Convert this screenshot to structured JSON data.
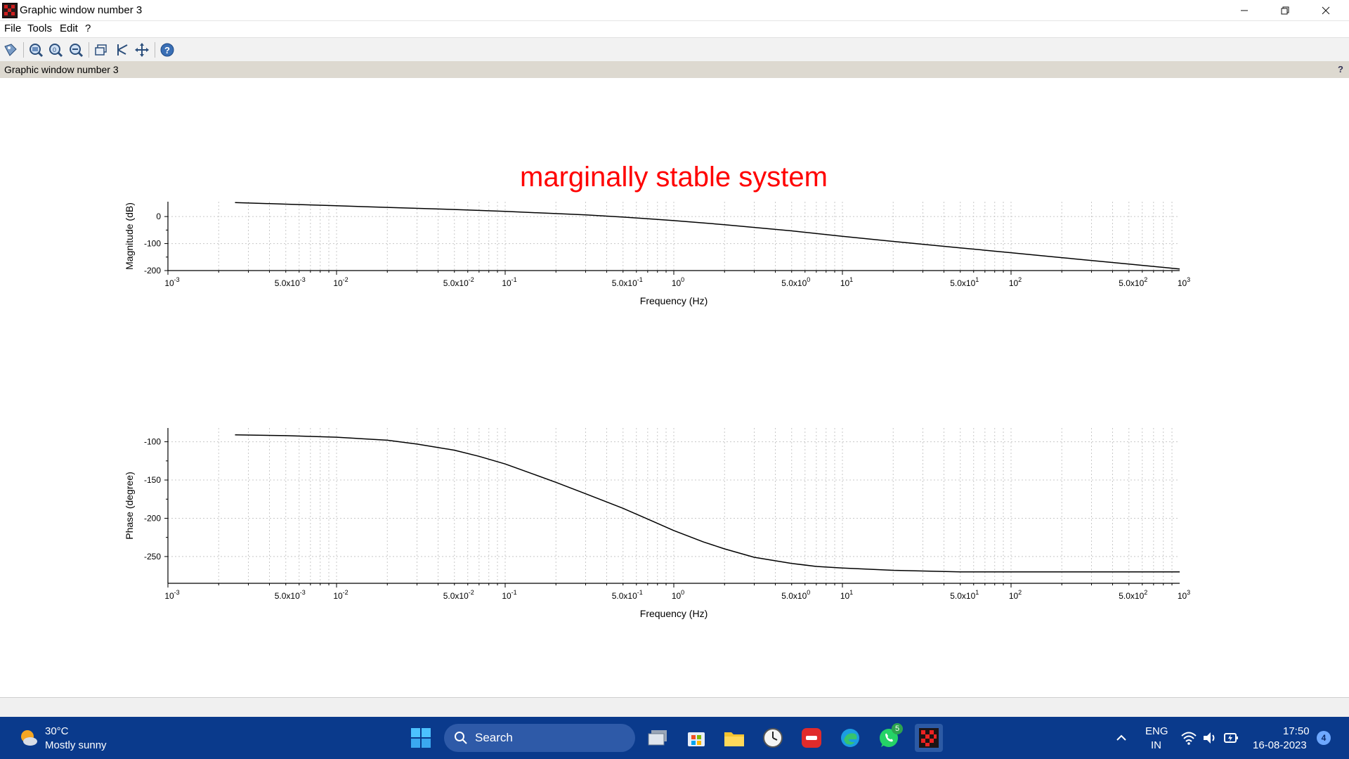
{
  "window": {
    "title": "Graphic window number 3",
    "minimize_icon": "minimize-icon",
    "restore_icon": "restore-icon",
    "close_icon": "close-icon"
  },
  "menu": [
    "File",
    "Tools",
    "Edit",
    "?"
  ],
  "toolbar": [
    "datatip-icon",
    "zoom-in-icon",
    "zoom-reset-icon",
    "zoom-out-icon",
    "rotate-3d-icon",
    "axes-icon",
    "pan-icon",
    "help-icon"
  ],
  "figure_label": "Graphic window number 3",
  "figure_help": "?",
  "chart_data": [
    {
      "type": "line",
      "title": "marginally stable system",
      "title_color": "#ff0000",
      "xlabel": "Frequency (Hz)",
      "ylabel": "Magnitude (dB)",
      "x_scale": "log",
      "xlim": [
        0.001,
        1000
      ],
      "ylim": [
        -200,
        55
      ],
      "y_ticks": [
        0,
        -100,
        -200
      ],
      "x_tick_labels": [
        {
          "mant": "10",
          "exp": "-3",
          "value": 0.001
        },
        {
          "mant": "5.0x10",
          "exp": "-3",
          "value": 0.005
        },
        {
          "mant": "10",
          "exp": "-2",
          "value": 0.01
        },
        {
          "mant": "5.0x10",
          "exp": "-2",
          "value": 0.05
        },
        {
          "mant": "10",
          "exp": "-1",
          "value": 0.1
        },
        {
          "mant": "5.0x10",
          "exp": "-1",
          "value": 0.5
        },
        {
          "mant": "10",
          "exp": "0",
          "value": 1
        },
        {
          "mant": "5.0x10",
          "exp": "0",
          "value": 5
        },
        {
          "mant": "10",
          "exp": "1",
          "value": 10
        },
        {
          "mant": "5.0x10",
          "exp": "1",
          "value": 50
        },
        {
          "mant": "10",
          "exp": "2",
          "value": 100
        },
        {
          "mant": "5.0x10",
          "exp": "2",
          "value": 500
        },
        {
          "mant": "10",
          "exp": "3",
          "value": 1000
        }
      ],
      "grid": true,
      "series": [
        {
          "color": "#000000",
          "x": [
            0.0025,
            0.005,
            0.01,
            0.02,
            0.05,
            0.1,
            0.2,
            0.3,
            0.5,
            0.7,
            1,
            2,
            5,
            10,
            20,
            50,
            100,
            200,
            500,
            1000
          ],
          "y": [
            52,
            46,
            40,
            34,
            26,
            19,
            11,
            6,
            -2,
            -8,
            -15,
            -30,
            -53,
            -73,
            -92,
            -116,
            -134,
            -152,
            -176,
            -194
          ]
        }
      ]
    },
    {
      "type": "line",
      "xlabel": "Frequency (Hz)",
      "ylabel": "Phase (degree)",
      "x_scale": "log",
      "xlim": [
        0.001,
        1000
      ],
      "ylim": [
        -285,
        -82
      ],
      "y_ticks": [
        -100,
        -150,
        -200,
        -250
      ],
      "x_tick_labels": [
        {
          "mant": "10",
          "exp": "-3",
          "value": 0.001
        },
        {
          "mant": "5.0x10",
          "exp": "-3",
          "value": 0.005
        },
        {
          "mant": "10",
          "exp": "-2",
          "value": 0.01
        },
        {
          "mant": "5.0x10",
          "exp": "-2",
          "value": 0.05
        },
        {
          "mant": "10",
          "exp": "-1",
          "value": 0.1
        },
        {
          "mant": "5.0x10",
          "exp": "-1",
          "value": 0.5
        },
        {
          "mant": "10",
          "exp": "0",
          "value": 1
        },
        {
          "mant": "5.0x10",
          "exp": "0",
          "value": 5
        },
        {
          "mant": "10",
          "exp": "1",
          "value": 10
        },
        {
          "mant": "5.0x10",
          "exp": "1",
          "value": 50
        },
        {
          "mant": "10",
          "exp": "2",
          "value": 100
        },
        {
          "mant": "5.0x10",
          "exp": "2",
          "value": 500
        },
        {
          "mant": "10",
          "exp": "3",
          "value": 1000
        }
      ],
      "grid": true,
      "series": [
        {
          "color": "#000000",
          "x": [
            0.0025,
            0.005,
            0.01,
            0.02,
            0.03,
            0.05,
            0.07,
            0.1,
            0.15,
            0.2,
            0.3,
            0.5,
            0.7,
            1,
            1.5,
            2,
            3,
            5,
            7,
            10,
            20,
            50,
            100,
            1000
          ],
          "y": [
            -91,
            -92,
            -94,
            -98,
            -103,
            -111,
            -119,
            -129,
            -143,
            -153,
            -168,
            -187,
            -201,
            -216,
            -231,
            -240,
            -251,
            -259,
            -263,
            -265,
            -268,
            -270,
            -270,
            -270
          ]
        }
      ]
    }
  ],
  "taskbar": {
    "weather_temp": "30°C",
    "weather_desc": "Mostly sunny",
    "search_label": "Search",
    "apps": [
      "task-view-icon",
      "store-icon",
      "file-explorer-icon",
      "clock-app-icon",
      "red-app-icon",
      "edge-icon",
      "whatsapp-icon",
      "scilab-icon"
    ],
    "whatsapp_badge": "5",
    "lang_line1": "ENG",
    "lang_line2": "IN",
    "time": "17:50",
    "date": "16-08-2023",
    "notification_count": "4"
  }
}
